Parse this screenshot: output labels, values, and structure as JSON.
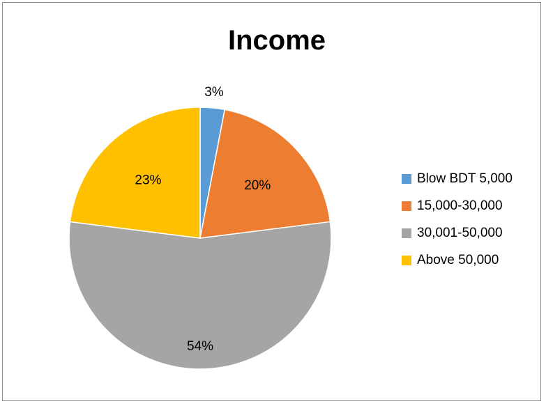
{
  "chart_data": {
    "type": "pie",
    "title": "Income",
    "categories": [
      "Blow BDT 5,000",
      "15,000-30,000",
      "30,001-50,000",
      "Above 50,000"
    ],
    "values": [
      3,
      20,
      54,
      23
    ],
    "labels": [
      "3%",
      "20%",
      "54%",
      "23%"
    ],
    "colors": [
      "#5b9bd5",
      "#ed7d31",
      "#a5a5a5",
      "#ffc000"
    ],
    "legend_position": "right"
  }
}
